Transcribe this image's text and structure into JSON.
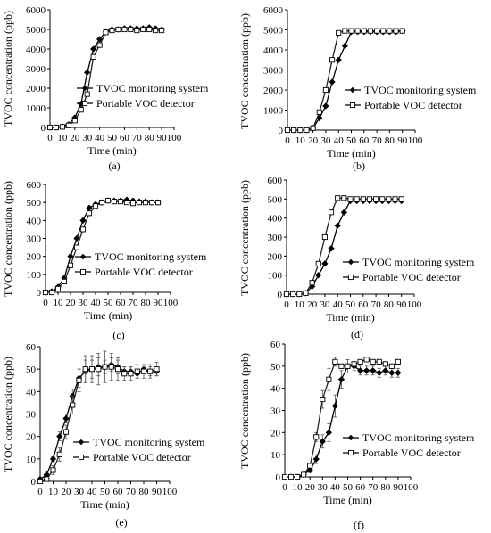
{
  "chart_data": [
    {
      "type": "line",
      "panel_label": "(a)",
      "xlabel": "Time (min)",
      "ylabel": "TVOC concentration  (ppb)",
      "xlim": [
        0,
        100
      ],
      "ylim": [
        0,
        6000
      ],
      "xticks": [
        0,
        10,
        20,
        30,
        40,
        50,
        60,
        70,
        80,
        90,
        100
      ],
      "yticks": [
        0,
        1000,
        2000,
        3000,
        4000,
        5000,
        6000
      ],
      "grid": false,
      "legend_position": "right",
      "series": [
        {
          "name": "TVOC monitoring system",
          "marker": "filled-diamond",
          "x": [
            0,
            5,
            10,
            15,
            20,
            25,
            30,
            35,
            40,
            45,
            50,
            55,
            60,
            65,
            70,
            75,
            80,
            85,
            90
          ],
          "y": [
            0,
            0,
            50,
            150,
            500,
            1200,
            2800,
            4000,
            4500,
            4900,
            5000,
            5000,
            5050,
            5050,
            5050,
            5050,
            5100,
            5050,
            5000
          ]
        },
        {
          "name": "Portable VOC detector",
          "marker": "open-square",
          "x": [
            0,
            5,
            10,
            15,
            20,
            25,
            30,
            35,
            40,
            45,
            50,
            55,
            60,
            65,
            70,
            75,
            80,
            85,
            90
          ],
          "y": [
            0,
            0,
            30,
            100,
            350,
            900,
            1700,
            3600,
            4200,
            4850,
            4950,
            5000,
            5000,
            5000,
            4950,
            5000,
            5000,
            4950,
            4950
          ]
        }
      ]
    },
    {
      "type": "line",
      "panel_label": "(b)",
      "xlabel": "Time (min)",
      "ylabel": "TVOC concentration  (ppb)",
      "xlim": [
        0,
        100
      ],
      "ylim": [
        0,
        6000
      ],
      "xticks": [
        0,
        10,
        20,
        30,
        40,
        50,
        60,
        70,
        80,
        90,
        100
      ],
      "yticks": [
        0,
        1000,
        2000,
        3000,
        4000,
        5000,
        6000
      ],
      "grid": false,
      "legend_position": "right",
      "series": [
        {
          "name": "TVOC monitoring system",
          "marker": "filled-diamond",
          "x": [
            0,
            5,
            10,
            15,
            20,
            25,
            30,
            35,
            40,
            45,
            50,
            55,
            60,
            65,
            70,
            75,
            80,
            85,
            90
          ],
          "y": [
            0,
            0,
            0,
            0,
            100,
            600,
            1200,
            2400,
            3500,
            4200,
            4900,
            4900,
            4900,
            4900,
            4900,
            4900,
            4900,
            4900,
            4950
          ]
        },
        {
          "name": "Portable VOC detector",
          "marker": "open-square",
          "x": [
            0,
            5,
            10,
            15,
            20,
            25,
            30,
            35,
            40,
            45,
            50,
            55,
            60,
            65,
            70,
            75,
            80,
            85,
            90
          ],
          "y": [
            0,
            0,
            0,
            0,
            100,
            900,
            2000,
            3500,
            4850,
            4950,
            4950,
            4950,
            4950,
            4950,
            4950,
            4950,
            4950,
            4950,
            4950
          ]
        }
      ]
    },
    {
      "type": "line",
      "panel_label": "(c)",
      "xlabel": "Time (min)",
      "ylabel": "TVOC concentration  (ppb)",
      "xlim": [
        0,
        100
      ],
      "ylim": [
        0,
        600
      ],
      "xticks": [
        0,
        10,
        20,
        30,
        40,
        50,
        60,
        70,
        80,
        90,
        100
      ],
      "yticks": [
        0,
        100,
        200,
        300,
        400,
        500,
        600
      ],
      "grid": false,
      "legend_position": "right",
      "series": [
        {
          "name": "TVOC monitoring system",
          "marker": "filled-diamond",
          "x": [
            0,
            5,
            10,
            15,
            20,
            25,
            30,
            35,
            40,
            45,
            50,
            55,
            60,
            65,
            70,
            75,
            80,
            85,
            90
          ],
          "y": [
            0,
            5,
            30,
            80,
            200,
            300,
            400,
            470,
            490,
            500,
            510,
            510,
            510,
            515,
            510,
            505,
            505,
            500,
            500
          ]
        },
        {
          "name": "Portable VOC detector",
          "marker": "open-square",
          "x": [
            0,
            5,
            10,
            15,
            20,
            25,
            30,
            35,
            40,
            45,
            50,
            55,
            60,
            65,
            70,
            75,
            80,
            85,
            90
          ],
          "y": [
            0,
            0,
            20,
            60,
            150,
            250,
            350,
            440,
            480,
            500,
            510,
            505,
            505,
            500,
            495,
            500,
            500,
            500,
            500
          ]
        }
      ]
    },
    {
      "type": "line",
      "panel_label": "(d)",
      "xlabel": "Time (min)",
      "ylabel": "TVOC concentration  (ppb)",
      "xlim": [
        0,
        100
      ],
      "ylim": [
        0,
        600
      ],
      "xticks": [
        0,
        10,
        20,
        30,
        40,
        50,
        60,
        70,
        80,
        90,
        100
      ],
      "yticks": [
        0,
        100,
        200,
        300,
        400,
        500,
        600
      ],
      "grid": false,
      "legend_position": "right",
      "series": [
        {
          "name": "TVOC monitoring system",
          "marker": "filled-diamond",
          "x": [
            0,
            5,
            10,
            15,
            20,
            25,
            30,
            35,
            40,
            45,
            50,
            55,
            60,
            65,
            70,
            75,
            80,
            85,
            90
          ],
          "y": [
            0,
            0,
            0,
            5,
            40,
            100,
            160,
            240,
            360,
            430,
            490,
            490,
            490,
            490,
            490,
            490,
            490,
            490,
            490
          ]
        },
        {
          "name": "Portable VOC detector",
          "marker": "open-square",
          "x": [
            0,
            5,
            10,
            15,
            20,
            25,
            30,
            35,
            40,
            45,
            50,
            55,
            60,
            65,
            70,
            75,
            80,
            85,
            90
          ],
          "y": [
            0,
            0,
            0,
            5,
            60,
            160,
            300,
            430,
            505,
            505,
            500,
            500,
            500,
            500,
            500,
            500,
            500,
            500,
            500
          ]
        }
      ]
    },
    {
      "type": "line",
      "panel_label": "(e)",
      "xlabel": "Time (min)",
      "ylabel": "TVOC concentration  (ppb)",
      "xlim": [
        0,
        100
      ],
      "ylim": [
        0,
        60
      ],
      "xticks": [
        0,
        10,
        20,
        30,
        40,
        50,
        60,
        70,
        80,
        90,
        100
      ],
      "yticks": [
        0,
        10,
        20,
        30,
        40,
        50,
        60
      ],
      "grid": false,
      "legend_position": "right",
      "series": [
        {
          "name": "TVOC monitoring system",
          "marker": "filled-diamond",
          "x": [
            0,
            5,
            10,
            15,
            20,
            25,
            30,
            35,
            40,
            45,
            50,
            55,
            60,
            65,
            70,
            75,
            80,
            85,
            90
          ],
          "y": [
            1,
            3,
            10,
            20,
            28,
            38,
            46,
            49,
            50,
            51,
            51,
            52,
            51,
            49,
            49,
            48,
            50,
            49,
            49
          ],
          "error": [
            0,
            1,
            1,
            2,
            2,
            3,
            4,
            5,
            4,
            4,
            3,
            3,
            3,
            2,
            2,
            2,
            2,
            2,
            2
          ]
        },
        {
          "name": "Portable VOC detector",
          "marker": "open-square",
          "x": [
            0,
            5,
            10,
            15,
            20,
            25,
            30,
            35,
            40,
            45,
            50,
            55,
            60,
            65,
            70,
            75,
            80,
            85,
            90
          ],
          "y": [
            0,
            1,
            5,
            12,
            22,
            34,
            45,
            50,
            50,
            50,
            51,
            51,
            50,
            48,
            48,
            49,
            49,
            49,
            50
          ],
          "error": [
            0,
            1,
            2,
            3,
            3,
            4,
            5,
            6,
            6,
            7,
            7,
            6,
            5,
            3,
            3,
            3,
            3,
            3,
            3
          ]
        }
      ]
    },
    {
      "type": "line",
      "panel_label": "(f)",
      "xlabel": "Time (min)",
      "ylabel": "TVOC concentration  (ppb)",
      "xlim": [
        0,
        100
      ],
      "ylim": [
        0,
        60
      ],
      "xticks": [
        0,
        10,
        20,
        30,
        40,
        50,
        60,
        70,
        80,
        90,
        100
      ],
      "yticks": [
        0,
        10,
        20,
        30,
        40,
        50,
        60
      ],
      "grid": false,
      "legend_position": "right",
      "series": [
        {
          "name": "TVOC monitoring system",
          "marker": "filled-diamond",
          "x": [
            0,
            5,
            10,
            15,
            20,
            25,
            30,
            35,
            40,
            45,
            50,
            55,
            60,
            65,
            70,
            75,
            80,
            85,
            90
          ],
          "y": [
            0,
            0,
            0,
            1,
            3,
            8,
            16,
            20,
            32,
            44,
            50,
            50,
            48,
            48,
            48,
            47,
            48,
            47,
            47
          ],
          "error": [
            0,
            0,
            0,
            0,
            1,
            2,
            3,
            4,
            5,
            4,
            3,
            2,
            2,
            2,
            2,
            2,
            2,
            2,
            2
          ]
        },
        {
          "name": "Portable VOC detector",
          "marker": "open-square",
          "x": [
            0,
            5,
            10,
            15,
            20,
            25,
            30,
            35,
            40,
            45,
            50,
            55,
            60,
            65,
            70,
            75,
            80,
            85,
            90
          ],
          "y": [
            0,
            0,
            0,
            1,
            5,
            18,
            35,
            44,
            52,
            50,
            50,
            51,
            52,
            53,
            52,
            52,
            51,
            50,
            52
          ],
          "error": [
            0,
            0,
            0,
            0,
            1,
            2,
            4,
            5,
            2,
            1,
            1,
            1,
            1,
            1,
            1,
            1,
            1,
            1,
            1
          ]
        }
      ]
    }
  ]
}
